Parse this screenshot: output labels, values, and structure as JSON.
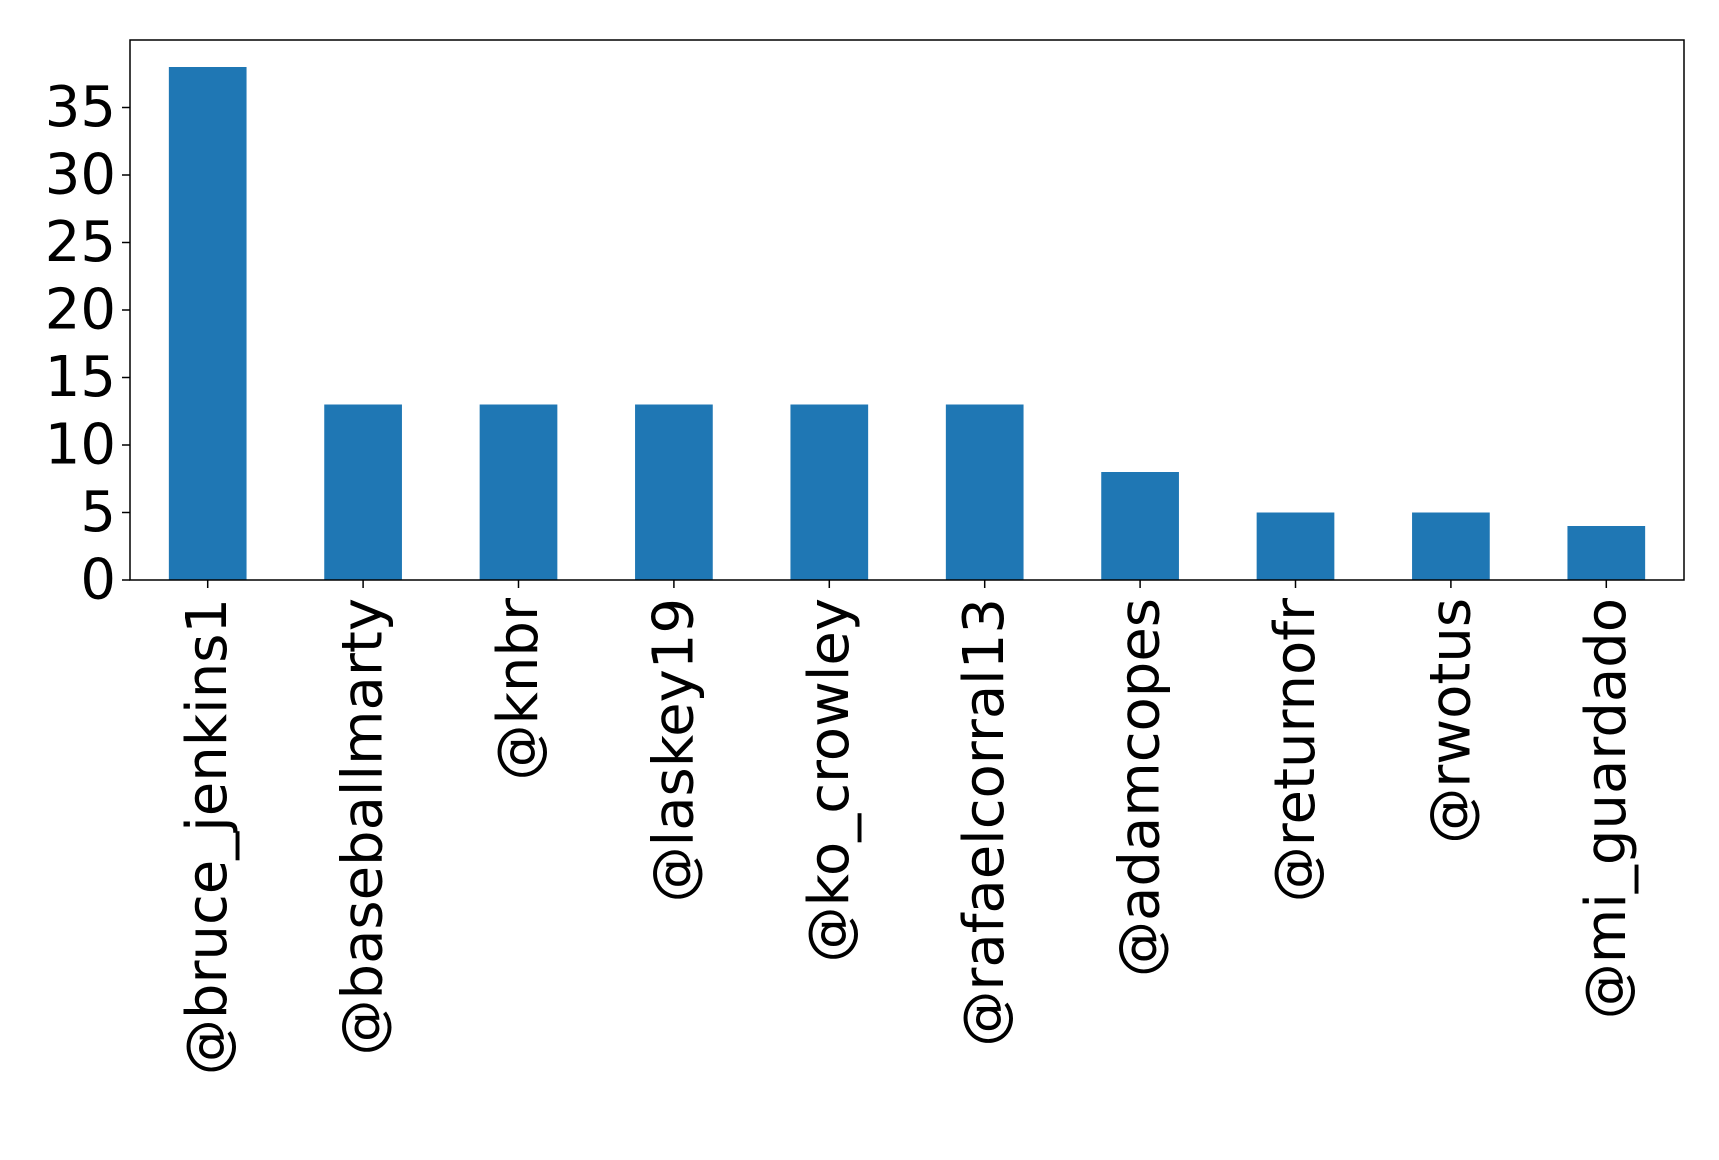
{
  "chart_data": {
    "type": "bar",
    "title": "",
    "xlabel": "",
    "ylabel": "",
    "categories": [
      "@bruce_jenkins1",
      "@baseballmarty",
      "@knbr",
      "@laskey19",
      "@ko_crowley",
      "@rafaelcorral13",
      "@adamcopes",
      "@returnofr",
      "@rwotus",
      "@mi_guardado"
    ],
    "values": [
      38,
      13,
      13,
      13,
      13,
      13,
      8,
      5,
      5,
      4
    ],
    "ylim": [
      0,
      40
    ],
    "yticks": [
      "0",
      "5",
      "10",
      "15",
      "20",
      "25",
      "30",
      "35"
    ],
    "grid": false,
    "legend": "none",
    "bar_color": "#1f77b4"
  }
}
